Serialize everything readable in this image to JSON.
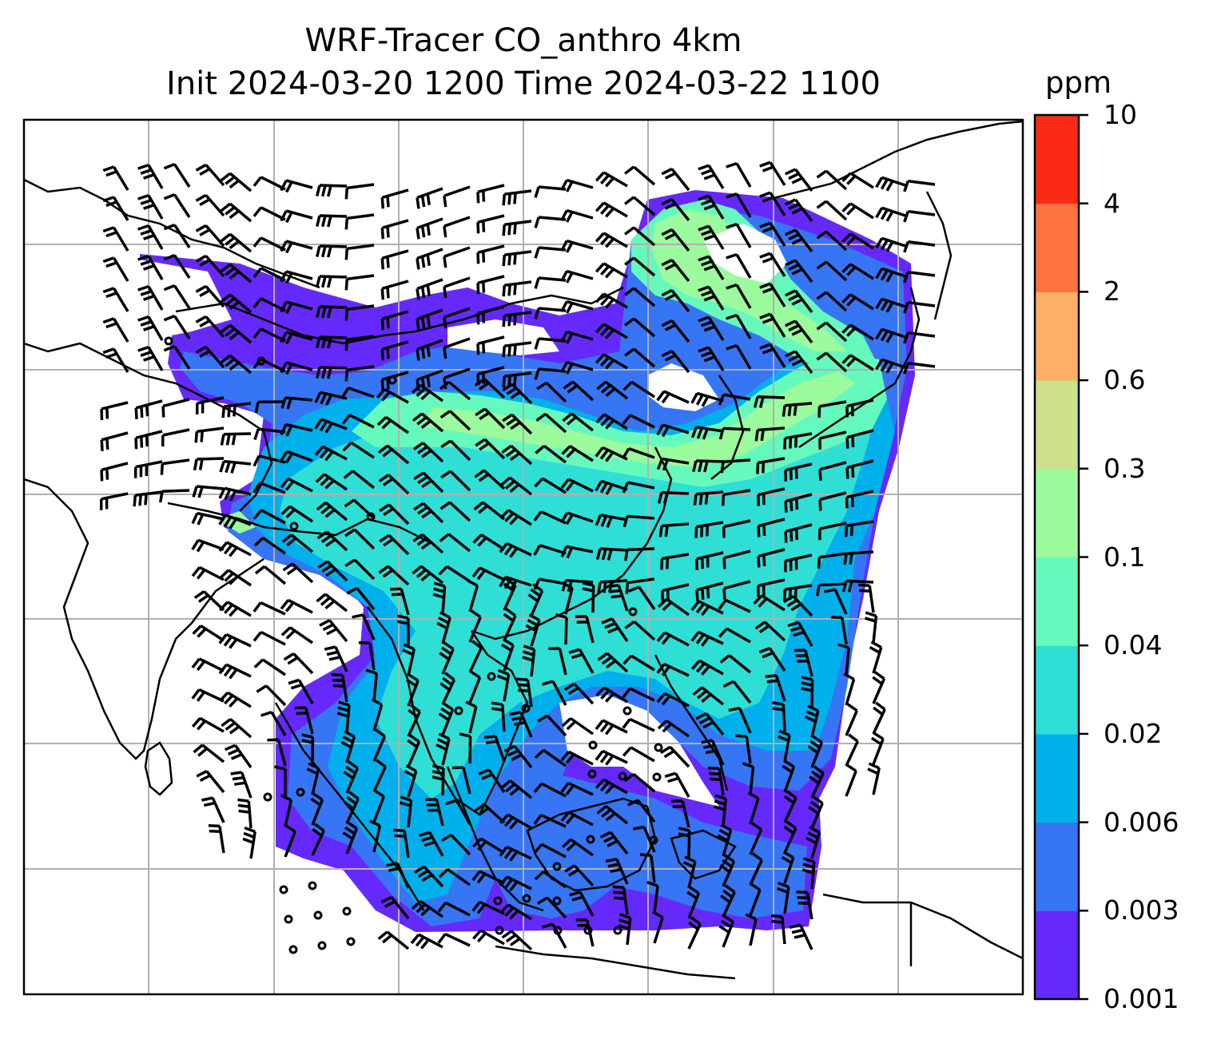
{
  "title": {
    "line1": "WRF-Tracer CO_anthro 4km",
    "line2": "Init 2024-03-20 1200 Time 2024-03-22 1100"
  },
  "colorbar": {
    "units": "ppm",
    "levels": [
      "0.001",
      "0.003",
      "0.006",
      "0.02",
      "0.04",
      "0.1",
      "0.3",
      "0.6",
      "2",
      "4",
      "10"
    ],
    "colors": [
      "#6629fb",
      "#3676f4",
      "#00b0ec",
      "#2fdfd6",
      "#66f9bd",
      "#9bfb9d",
      "#cde18a",
      "#fcb066",
      "#fc7340",
      "#fa2a16"
    ]
  },
  "map": {
    "frame_color": "#000000",
    "gridline_color": "#b0b0b0",
    "coastline_color": "#000000",
    "wind_barb_color": "#000000",
    "field": "CO_anthro concentration (ppm)",
    "overlays": [
      "coastlines",
      "country borders",
      "lat-lon gridlines",
      "wind barbs",
      "calm-wind circles"
    ]
  }
}
